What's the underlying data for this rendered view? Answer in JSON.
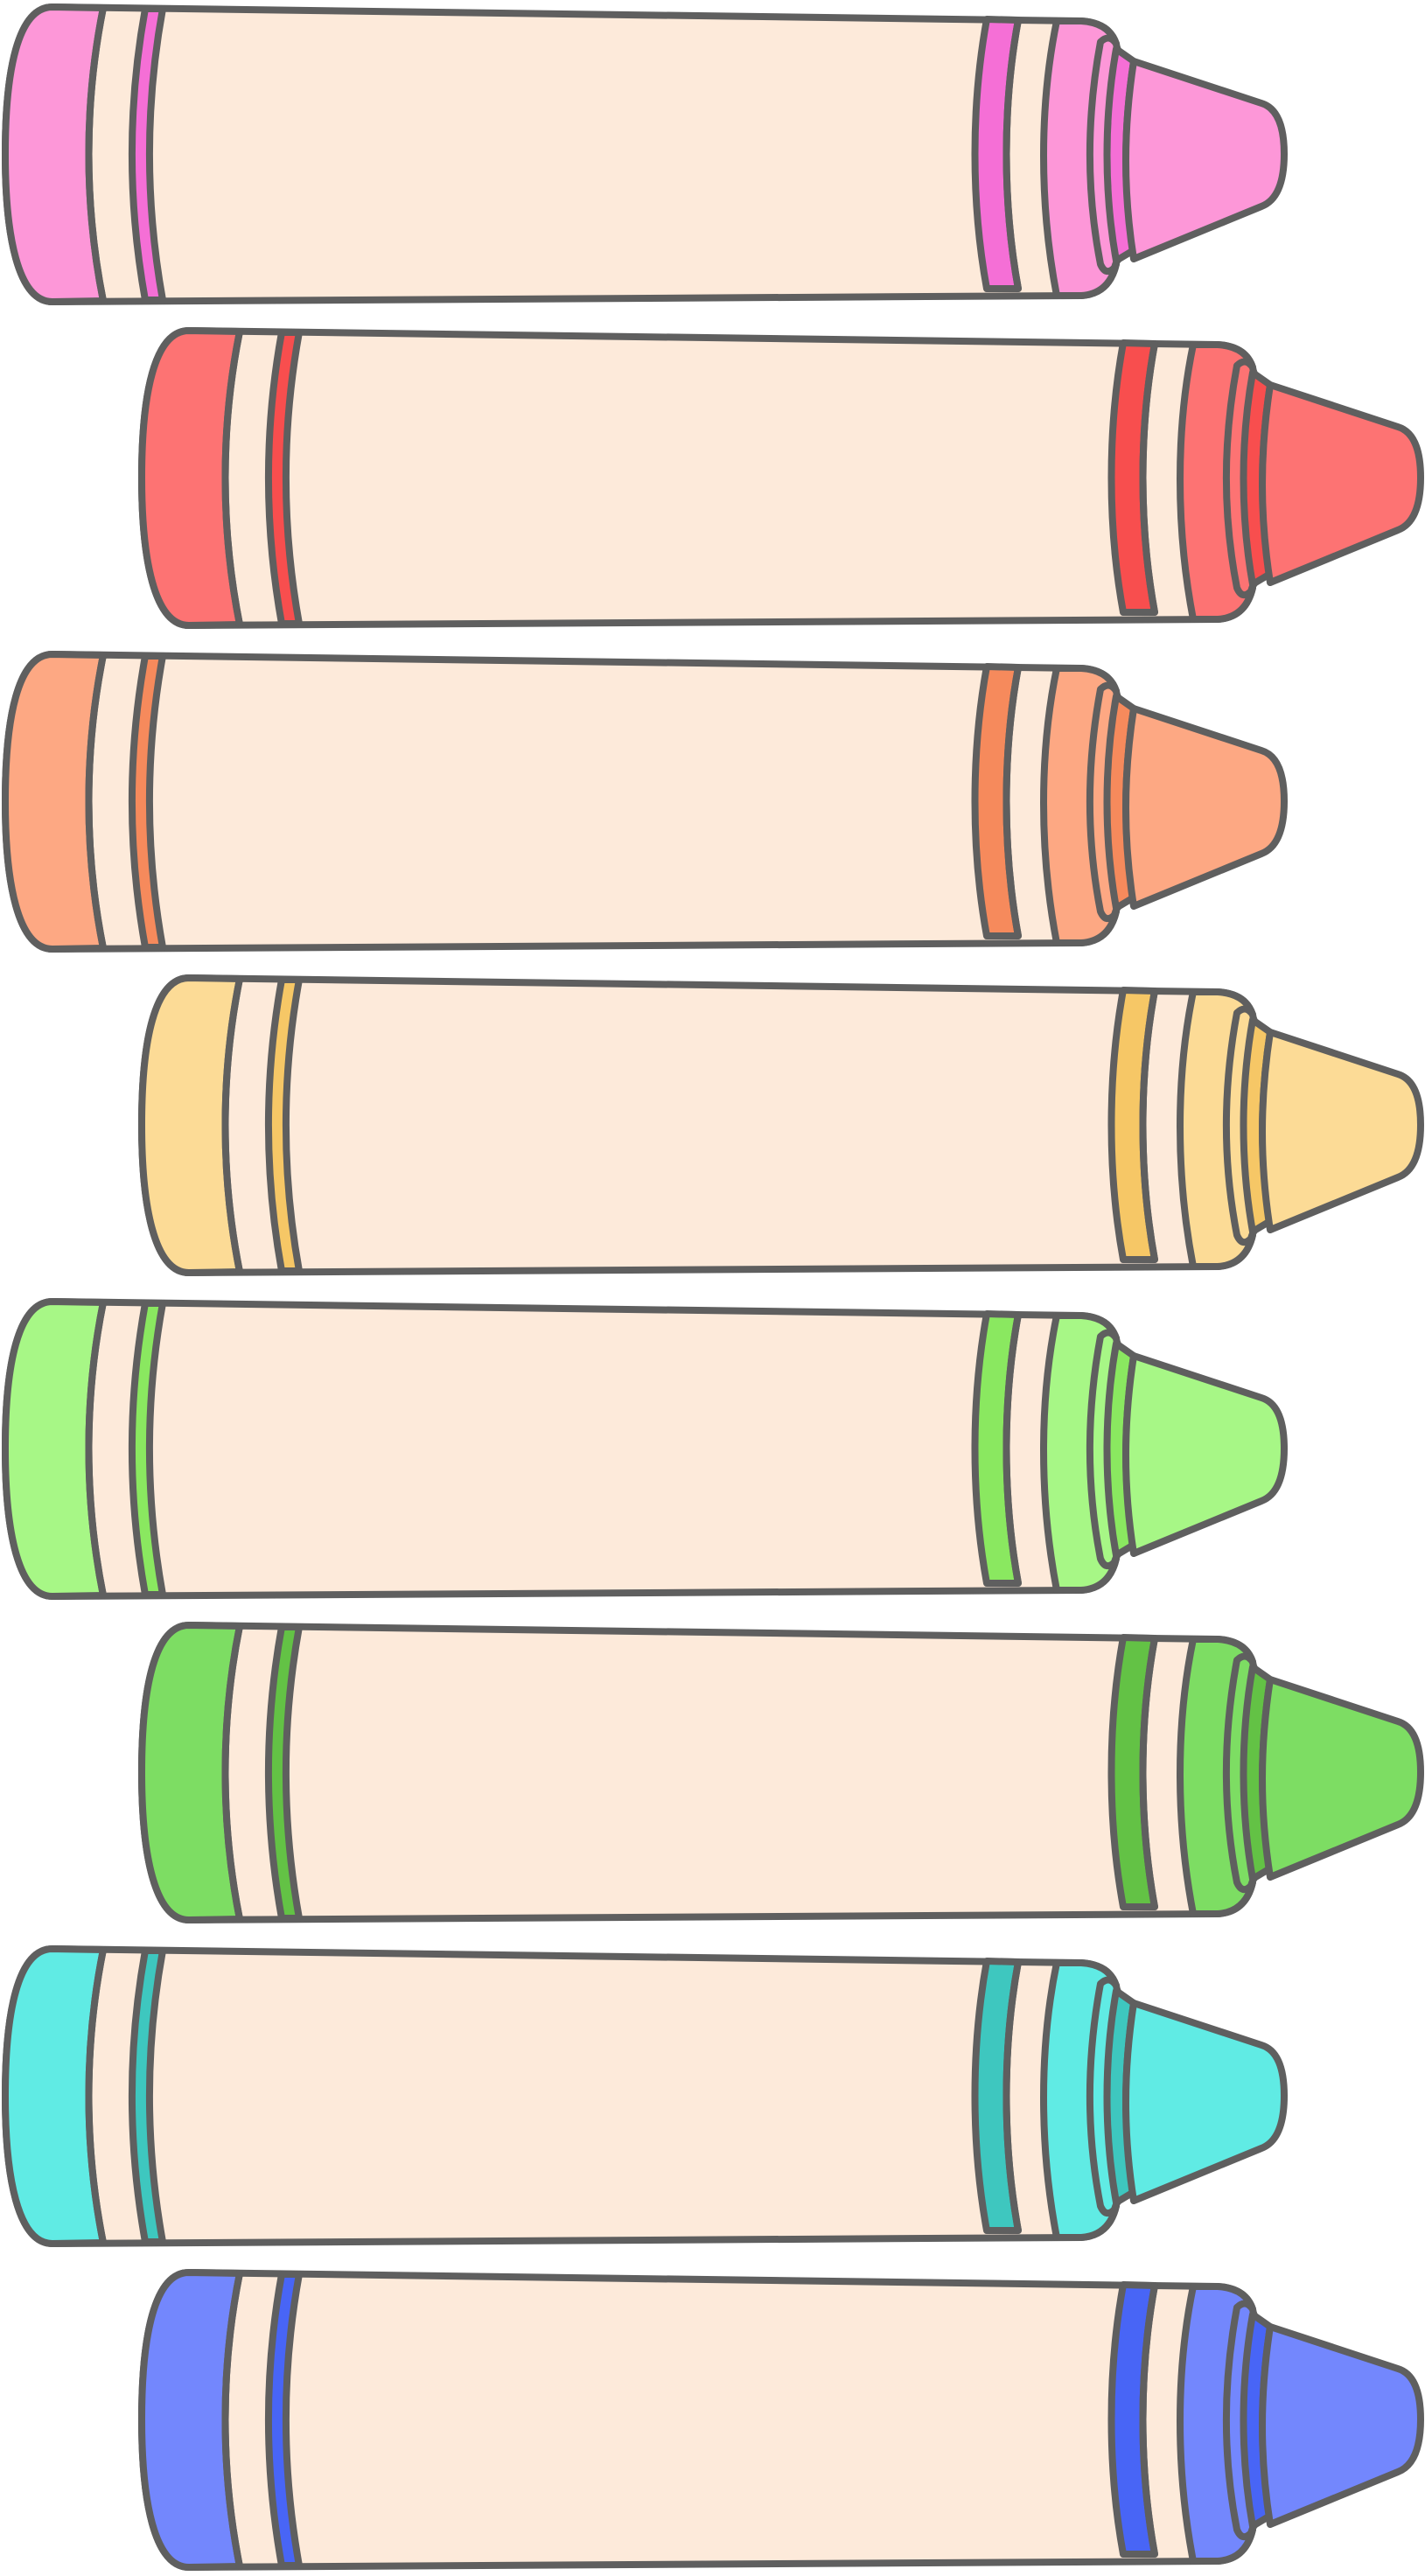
{
  "palette": {
    "outline": "#5f5f5f",
    "wrapper": "#fdeada"
  },
  "crayons": [
    {
      "name": "pink",
      "body": "#fd97d8",
      "band": "#f56fd6"
    },
    {
      "name": "red",
      "body": "#fd7373",
      "band": "#f84e4e"
    },
    {
      "name": "orange",
      "body": "#fda883",
      "band": "#f68a5c"
    },
    {
      "name": "yellow",
      "body": "#fcdb96",
      "band": "#f6c766"
    },
    {
      "name": "lime",
      "body": "#a7f786",
      "band": "#8ae860"
    },
    {
      "name": "green",
      "body": "#7ddd63",
      "band": "#63c245"
    },
    {
      "name": "cyan",
      "body": "#60ebe4",
      "band": "#3ec7bf"
    },
    {
      "name": "blue",
      "body": "#7387fd",
      "band": "#4865f6"
    }
  ]
}
